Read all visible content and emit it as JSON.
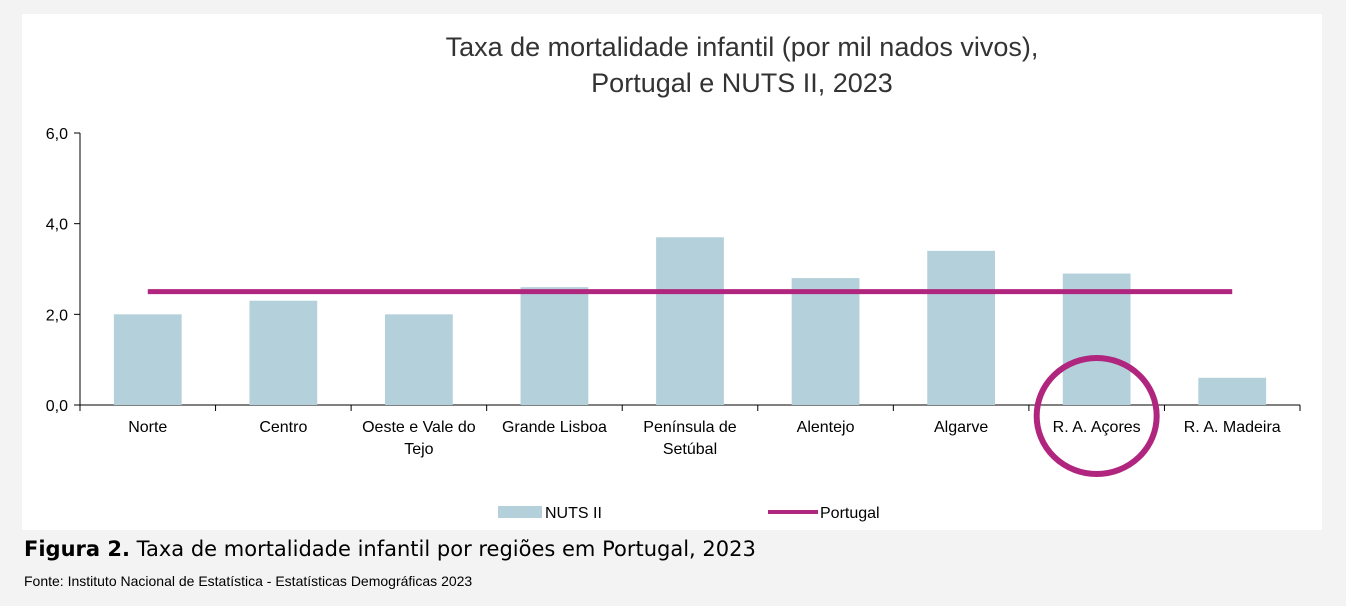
{
  "chart_data": {
    "type": "bar",
    "title_lines": [
      "Taxa de mortalidade infantil (por mil nados vivos),",
      "Portugal e NUTS II, 2023"
    ],
    "categories": [
      [
        "Norte"
      ],
      [
        "Centro"
      ],
      [
        "Oeste e Vale do",
        "Tejo"
      ],
      [
        "Grande Lisboa"
      ],
      [
        "Península de",
        "Setúbal"
      ],
      [
        "Alentejo"
      ],
      [
        "Algarve"
      ],
      [
        "R. A. Açores"
      ],
      [
        "R. A. Madeira"
      ]
    ],
    "series": [
      {
        "name": "NUTS II",
        "type": "bar",
        "color": "#b4d1db",
        "values": [
          2.0,
          2.3,
          2.0,
          2.6,
          3.7,
          2.8,
          3.4,
          2.9,
          0.6
        ]
      },
      {
        "name": "Portugal",
        "type": "line",
        "color": "#b0267f",
        "values": [
          2.5,
          2.5,
          2.5,
          2.5,
          2.5,
          2.5,
          2.5,
          2.5,
          2.5
        ]
      }
    ],
    "yticks": [
      "0,0",
      "2,0",
      "4,0",
      "6,0"
    ],
    "ylim": [
      0,
      6
    ],
    "grid": false,
    "legend": "bottom",
    "highlight": {
      "category_index": 7,
      "shape": "circle",
      "color": "#b0267f"
    }
  },
  "caption": {
    "label": "Figura 2.",
    "text": " Taxa de mortalidade infantil por regiões em Portugal, 2023"
  },
  "source": "Fonte: Instituto Nacional de Estatística - Estatísticas Demográficas 2023"
}
